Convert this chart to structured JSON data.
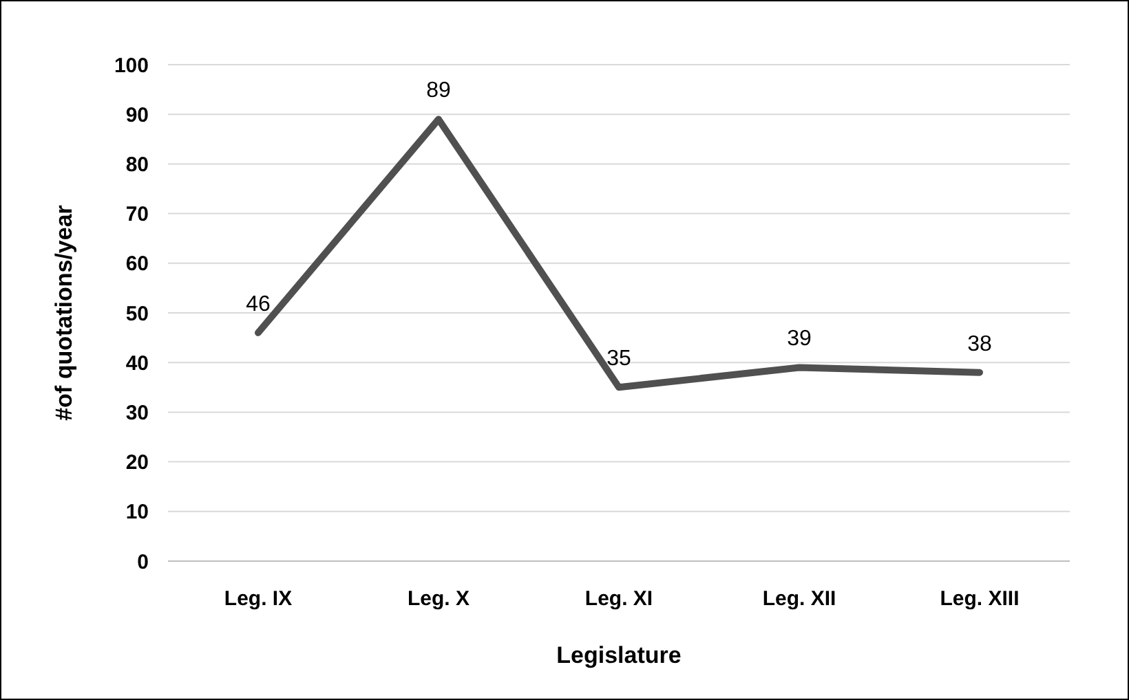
{
  "chart_data": {
    "type": "line",
    "xlabel": "Legislature",
    "ylabel": "#of quotations/year",
    "categories": [
      "Leg. IX",
      "Leg. X",
      "Leg. XI",
      "Leg. XII",
      "Leg. XIII"
    ],
    "series": [
      {
        "color": "#505050",
        "values": [
          46,
          89,
          35,
          39,
          38
        ]
      }
    ],
    "ylim": [
      0,
      100
    ],
    "yticks": [
      0,
      10,
      20,
      30,
      40,
      50,
      60,
      70,
      80,
      90,
      100
    ],
    "grid": "y",
    "data_labels": true,
    "marker": "none",
    "line_style": "solid"
  }
}
